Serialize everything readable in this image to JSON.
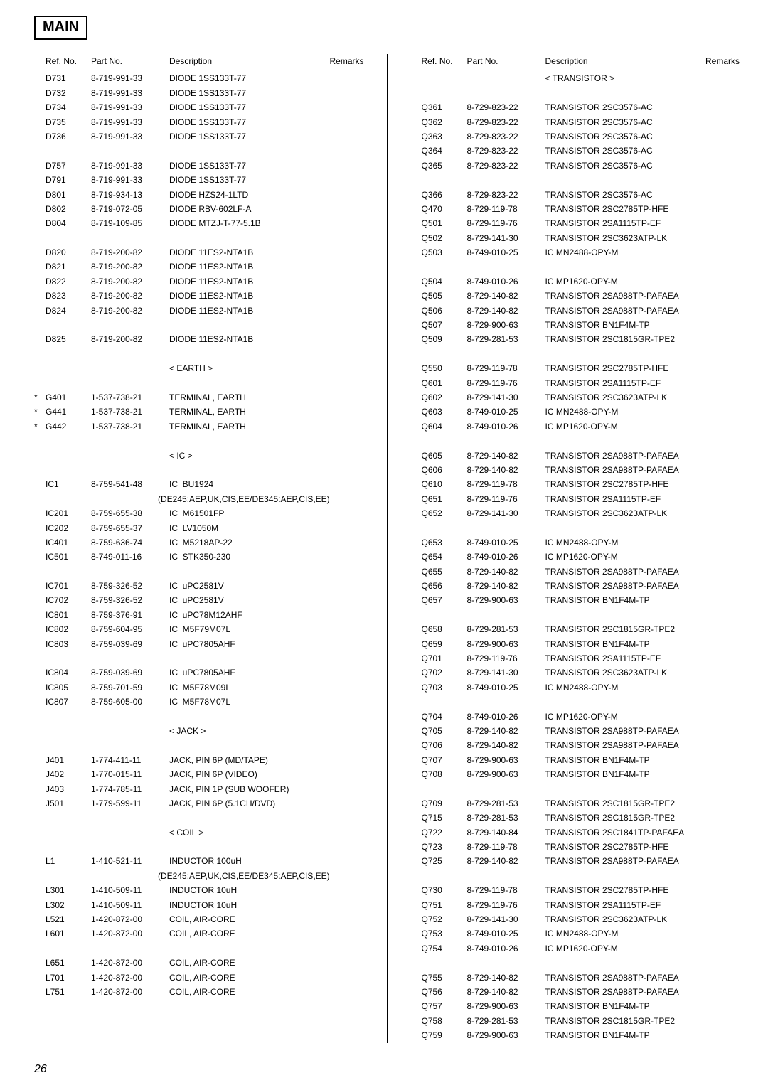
{
  "title": "MAIN",
  "page_number": "26",
  "headers": {
    "ref": "Ref. No.",
    "part": "Part No.",
    "desc": "Description",
    "remarks": "Remarks"
  },
  "section_labels": {
    "transistor": "< TRANSISTOR >",
    "earth": "< EARTH >",
    "ic": "< IC >",
    "jack": "< JACK >",
    "coil": "< COIL >"
  },
  "left_rows": [
    {
      "t": "r",
      "ref": "D731",
      "part": "8-719-991-33",
      "desc": "DIODE 1SS133T-77"
    },
    {
      "t": "r",
      "ref": "D732",
      "part": "8-719-991-33",
      "desc": "DIODE 1SS133T-77"
    },
    {
      "t": "r",
      "ref": "D734",
      "part": "8-719-991-33",
      "desc": "DIODE 1SS133T-77"
    },
    {
      "t": "r",
      "ref": "D735",
      "part": "8-719-991-33",
      "desc": "DIODE 1SS133T-77"
    },
    {
      "t": "r",
      "ref": "D736",
      "part": "8-719-991-33",
      "desc": "DIODE 1SS133T-77"
    },
    {
      "t": "sp"
    },
    {
      "t": "r",
      "ref": "D757",
      "part": "8-719-991-33",
      "desc": "DIODE 1SS133T-77"
    },
    {
      "t": "r",
      "ref": "D791",
      "part": "8-719-991-33",
      "desc": "DIODE 1SS133T-77"
    },
    {
      "t": "r",
      "ref": "D801",
      "part": "8-719-934-13",
      "desc": "DIODE HZS24-1LTD"
    },
    {
      "t": "r",
      "ref": "D802",
      "part": "8-719-072-05",
      "desc": "DIODE RBV-602LF-A"
    },
    {
      "t": "r",
      "ref": "D804",
      "part": "8-719-109-85",
      "desc": "DIODE MTZJ-T-77-5.1B"
    },
    {
      "t": "sp"
    },
    {
      "t": "r",
      "ref": "D820",
      "part": "8-719-200-82",
      "desc": "DIODE 11ES2-NTA1B"
    },
    {
      "t": "r",
      "ref": "D821",
      "part": "8-719-200-82",
      "desc": "DIODE 11ES2-NTA1B"
    },
    {
      "t": "r",
      "ref": "D822",
      "part": "8-719-200-82",
      "desc": "DIODE 11ES2-NTA1B"
    },
    {
      "t": "r",
      "ref": "D823",
      "part": "8-719-200-82",
      "desc": "DIODE 11ES2-NTA1B"
    },
    {
      "t": "r",
      "ref": "D824",
      "part": "8-719-200-82",
      "desc": "DIODE 11ES2-NTA1B"
    },
    {
      "t": "sp"
    },
    {
      "t": "r",
      "ref": "D825",
      "part": "8-719-200-82",
      "desc": "DIODE 11ES2-NTA1B"
    },
    {
      "t": "sp"
    },
    {
      "t": "sec",
      "key": "earth"
    },
    {
      "t": "sp"
    },
    {
      "t": "r",
      "star": "*",
      "ref": "G401",
      "part": "1-537-738-21",
      "desc": "TERMINAL, EARTH"
    },
    {
      "t": "r",
      "star": "*",
      "ref": "G441",
      "part": "1-537-738-21",
      "desc": "TERMINAL, EARTH"
    },
    {
      "t": "r",
      "star": "*",
      "ref": "G442",
      "part": "1-537-738-21",
      "desc": "TERMINAL, EARTH"
    },
    {
      "t": "sp"
    },
    {
      "t": "sec",
      "key": "ic"
    },
    {
      "t": "sp"
    },
    {
      "t": "r",
      "ref": "IC1",
      "part": "8-759-541-48",
      "desc": "IC  BU1924"
    },
    {
      "t": "sub",
      "desc": "(DE245:AEP,UK,CIS,EE/DE345:AEP,CIS,EE)"
    },
    {
      "t": "r",
      "ref": "IC201",
      "part": "8-759-655-38",
      "desc": "IC  M61501FP"
    },
    {
      "t": "r",
      "ref": "IC202",
      "part": "8-759-655-37",
      "desc": "IC  LV1050M"
    },
    {
      "t": "r",
      "ref": "IC401",
      "part": "8-759-636-74",
      "desc": "IC  M5218AP-22"
    },
    {
      "t": "r",
      "ref": "IC501",
      "part": "8-749-011-16",
      "desc": "IC  STK350-230"
    },
    {
      "t": "sp"
    },
    {
      "t": "r",
      "ref": "IC701",
      "part": "8-759-326-52",
      "desc": "IC  uPC2581V"
    },
    {
      "t": "r",
      "ref": "IC702",
      "part": "8-759-326-52",
      "desc": "IC  uPC2581V"
    },
    {
      "t": "r",
      "ref": "IC801",
      "part": "8-759-376-91",
      "desc": "IC  uPC78M12AHF"
    },
    {
      "t": "r",
      "ref": "IC802",
      "part": "8-759-604-95",
      "desc": "IC  M5F79M07L"
    },
    {
      "t": "r",
      "ref": "IC803",
      "part": "8-759-039-69",
      "desc": "IC  uPC7805AHF"
    },
    {
      "t": "sp"
    },
    {
      "t": "r",
      "ref": "IC804",
      "part": "8-759-039-69",
      "desc": "IC  uPC7805AHF"
    },
    {
      "t": "r",
      "ref": "IC805",
      "part": "8-759-701-59",
      "desc": "IC  M5F78M09L"
    },
    {
      "t": "r",
      "ref": "IC807",
      "part": "8-759-605-00",
      "desc": "IC  M5F78M07L"
    },
    {
      "t": "sp"
    },
    {
      "t": "sec",
      "key": "jack"
    },
    {
      "t": "sp"
    },
    {
      "t": "r",
      "ref": "J401",
      "part": "1-774-411-11",
      "desc": "JACK, PIN 6P (MD/TAPE)"
    },
    {
      "t": "r",
      "ref": "J402",
      "part": "1-770-015-11",
      "desc": "JACK, PIN 6P (VIDEO)"
    },
    {
      "t": "r",
      "ref": "J403",
      "part": "1-774-785-11",
      "desc": "JACK, PIN 1P (SUB WOOFER)"
    },
    {
      "t": "r",
      "ref": "J501",
      "part": "1-779-599-11",
      "desc": "JACK, PIN 6P (5.1CH/DVD)"
    },
    {
      "t": "sp"
    },
    {
      "t": "sec",
      "key": "coil"
    },
    {
      "t": "sp"
    },
    {
      "t": "r",
      "ref": "L1",
      "part": "1-410-521-11",
      "desc": "INDUCTOR 100uH"
    },
    {
      "t": "sub",
      "desc": "(DE245:AEP,UK,CIS,EE/DE345:AEP,CIS,EE)"
    },
    {
      "t": "r",
      "ref": "L301",
      "part": "1-410-509-11",
      "desc": "INDUCTOR 10uH"
    },
    {
      "t": "r",
      "ref": "L302",
      "part": "1-410-509-11",
      "desc": "INDUCTOR 10uH"
    },
    {
      "t": "r",
      "ref": "L521",
      "part": "1-420-872-00",
      "desc": "COIL, AIR-CORE"
    },
    {
      "t": "r",
      "ref": "L601",
      "part": "1-420-872-00",
      "desc": "COIL, AIR-CORE"
    },
    {
      "t": "sp"
    },
    {
      "t": "r",
      "ref": "L651",
      "part": "1-420-872-00",
      "desc": "COIL, AIR-CORE"
    },
    {
      "t": "r",
      "ref": "L701",
      "part": "1-420-872-00",
      "desc": "COIL, AIR-CORE"
    },
    {
      "t": "r",
      "ref": "L751",
      "part": "1-420-872-00",
      "desc": "COIL, AIR-CORE"
    }
  ],
  "right_rows": [
    {
      "t": "sec",
      "key": "transistor"
    },
    {
      "t": "sp"
    },
    {
      "t": "r",
      "ref": "Q361",
      "part": "8-729-823-22",
      "desc": "TRANSISTOR 2SC3576-AC"
    },
    {
      "t": "r",
      "ref": "Q362",
      "part": "8-729-823-22",
      "desc": "TRANSISTOR 2SC3576-AC"
    },
    {
      "t": "r",
      "ref": "Q363",
      "part": "8-729-823-22",
      "desc": "TRANSISTOR 2SC3576-AC"
    },
    {
      "t": "r",
      "ref": "Q364",
      "part": "8-729-823-22",
      "desc": "TRANSISTOR 2SC3576-AC"
    },
    {
      "t": "r",
      "ref": "Q365",
      "part": "8-729-823-22",
      "desc": "TRANSISTOR 2SC3576-AC"
    },
    {
      "t": "sp"
    },
    {
      "t": "r",
      "ref": "Q366",
      "part": "8-729-823-22",
      "desc": "TRANSISTOR 2SC3576-AC"
    },
    {
      "t": "r",
      "ref": "Q470",
      "part": "8-729-119-78",
      "desc": "TRANSISTOR 2SC2785TP-HFE"
    },
    {
      "t": "r",
      "ref": "Q501",
      "part": "8-729-119-76",
      "desc": "TRANSISTOR 2SA1115TP-EF"
    },
    {
      "t": "r",
      "ref": "Q502",
      "part": "8-729-141-30",
      "desc": "TRANSISTOR 2SC3623ATP-LK"
    },
    {
      "t": "r",
      "ref": "Q503",
      "part": "8-749-010-25",
      "desc": "IC MN2488-OPY-M"
    },
    {
      "t": "sp"
    },
    {
      "t": "r",
      "ref": "Q504",
      "part": "8-749-010-26",
      "desc": "IC MP1620-OPY-M"
    },
    {
      "t": "r",
      "ref": "Q505",
      "part": "8-729-140-82",
      "desc": "TRANSISTOR 2SA988TP-PAFAEA"
    },
    {
      "t": "r",
      "ref": "Q506",
      "part": "8-729-140-82",
      "desc": "TRANSISTOR 2SA988TP-PAFAEA"
    },
    {
      "t": "r",
      "ref": "Q507",
      "part": "8-729-900-63",
      "desc": "TRANSISTOR BN1F4M-TP"
    },
    {
      "t": "r",
      "ref": "Q509",
      "part": "8-729-281-53",
      "desc": "TRANSISTOR 2SC1815GR-TPE2"
    },
    {
      "t": "sp"
    },
    {
      "t": "r",
      "ref": "Q550",
      "part": "8-729-119-78",
      "desc": "TRANSISTOR 2SC2785TP-HFE"
    },
    {
      "t": "r",
      "ref": "Q601",
      "part": "8-729-119-76",
      "desc": "TRANSISTOR 2SA1115TP-EF"
    },
    {
      "t": "r",
      "ref": "Q602",
      "part": "8-729-141-30",
      "desc": "TRANSISTOR 2SC3623ATP-LK"
    },
    {
      "t": "r",
      "ref": "Q603",
      "part": "8-749-010-25",
      "desc": "IC MN2488-OPY-M"
    },
    {
      "t": "r",
      "ref": "Q604",
      "part": "8-749-010-26",
      "desc": "IC MP1620-OPY-M"
    },
    {
      "t": "sp"
    },
    {
      "t": "r",
      "ref": "Q605",
      "part": "8-729-140-82",
      "desc": "TRANSISTOR 2SA988TP-PAFAEA"
    },
    {
      "t": "r",
      "ref": "Q606",
      "part": "8-729-140-82",
      "desc": "TRANSISTOR 2SA988TP-PAFAEA"
    },
    {
      "t": "r",
      "ref": "Q610",
      "part": "8-729-119-78",
      "desc": "TRANSISTOR 2SC2785TP-HFE"
    },
    {
      "t": "r",
      "ref": "Q651",
      "part": "8-729-119-76",
      "desc": "TRANSISTOR 2SA1115TP-EF"
    },
    {
      "t": "r",
      "ref": "Q652",
      "part": "8-729-141-30",
      "desc": "TRANSISTOR 2SC3623ATP-LK"
    },
    {
      "t": "sp"
    },
    {
      "t": "r",
      "ref": "Q653",
      "part": "8-749-010-25",
      "desc": "IC MN2488-OPY-M"
    },
    {
      "t": "r",
      "ref": "Q654",
      "part": "8-749-010-26",
      "desc": "IC MP1620-OPY-M"
    },
    {
      "t": "r",
      "ref": "Q655",
      "part": "8-729-140-82",
      "desc": "TRANSISTOR 2SA988TP-PAFAEA"
    },
    {
      "t": "r",
      "ref": "Q656",
      "part": "8-729-140-82",
      "desc": "TRANSISTOR 2SA988TP-PAFAEA"
    },
    {
      "t": "r",
      "ref": "Q657",
      "part": "8-729-900-63",
      "desc": "TRANSISTOR BN1F4M-TP"
    },
    {
      "t": "sp"
    },
    {
      "t": "r",
      "ref": "Q658",
      "part": "8-729-281-53",
      "desc": "TRANSISTOR 2SC1815GR-TPE2"
    },
    {
      "t": "r",
      "ref": "Q659",
      "part": "8-729-900-63",
      "desc": "TRANSISTOR BN1F4M-TP"
    },
    {
      "t": "r",
      "ref": "Q701",
      "part": "8-729-119-76",
      "desc": "TRANSISTOR 2SA1115TP-EF"
    },
    {
      "t": "r",
      "ref": "Q702",
      "part": "8-729-141-30",
      "desc": "TRANSISTOR 2SC3623ATP-LK"
    },
    {
      "t": "r",
      "ref": "Q703",
      "part": "8-749-010-25",
      "desc": "IC MN2488-OPY-M"
    },
    {
      "t": "sp"
    },
    {
      "t": "r",
      "ref": "Q704",
      "part": "8-749-010-26",
      "desc": "IC MP1620-OPY-M"
    },
    {
      "t": "r",
      "ref": "Q705",
      "part": "8-729-140-82",
      "desc": "TRANSISTOR 2SA988TP-PAFAEA"
    },
    {
      "t": "r",
      "ref": "Q706",
      "part": "8-729-140-82",
      "desc": "TRANSISTOR 2SA988TP-PAFAEA"
    },
    {
      "t": "r",
      "ref": "Q707",
      "part": "8-729-900-63",
      "desc": "TRANSISTOR BN1F4M-TP"
    },
    {
      "t": "r",
      "ref": "Q708",
      "part": "8-729-900-63",
      "desc": "TRANSISTOR BN1F4M-TP"
    },
    {
      "t": "sp"
    },
    {
      "t": "r",
      "ref": "Q709",
      "part": "8-729-281-53",
      "desc": "TRANSISTOR 2SC1815GR-TPE2"
    },
    {
      "t": "r",
      "ref": "Q715",
      "part": "8-729-281-53",
      "desc": "TRANSISTOR 2SC1815GR-TPE2"
    },
    {
      "t": "r",
      "ref": "Q722",
      "part": "8-729-140-84",
      "desc": "TRANSISTOR 2SC1841TP-PAFAEA"
    },
    {
      "t": "r",
      "ref": "Q723",
      "part": "8-729-119-78",
      "desc": "TRANSISTOR 2SC2785TP-HFE"
    },
    {
      "t": "r",
      "ref": "Q725",
      "part": "8-729-140-82",
      "desc": "TRANSISTOR 2SA988TP-PAFAEA"
    },
    {
      "t": "sp"
    },
    {
      "t": "r",
      "ref": "Q730",
      "part": "8-729-119-78",
      "desc": "TRANSISTOR 2SC2785TP-HFE"
    },
    {
      "t": "r",
      "ref": "Q751",
      "part": "8-729-119-76",
      "desc": "TRANSISTOR 2SA1115TP-EF"
    },
    {
      "t": "r",
      "ref": "Q752",
      "part": "8-729-141-30",
      "desc": "TRANSISTOR 2SC3623ATP-LK"
    },
    {
      "t": "r",
      "ref": "Q753",
      "part": "8-749-010-25",
      "desc": "IC MN2488-OPY-M"
    },
    {
      "t": "r",
      "ref": "Q754",
      "part": "8-749-010-26",
      "desc": "IC MP1620-OPY-M"
    },
    {
      "t": "sp"
    },
    {
      "t": "r",
      "ref": "Q755",
      "part": "8-729-140-82",
      "desc": "TRANSISTOR 2SA988TP-PAFAEA"
    },
    {
      "t": "r",
      "ref": "Q756",
      "part": "8-729-140-82",
      "desc": "TRANSISTOR 2SA988TP-PAFAEA"
    },
    {
      "t": "r",
      "ref": "Q757",
      "part": "8-729-900-63",
      "desc": "TRANSISTOR BN1F4M-TP"
    },
    {
      "t": "r",
      "ref": "Q758",
      "part": "8-729-281-53",
      "desc": "TRANSISTOR 2SC1815GR-TPE2"
    },
    {
      "t": "r",
      "ref": "Q759",
      "part": "8-729-900-63",
      "desc": "TRANSISTOR BN1F4M-TP"
    }
  ]
}
